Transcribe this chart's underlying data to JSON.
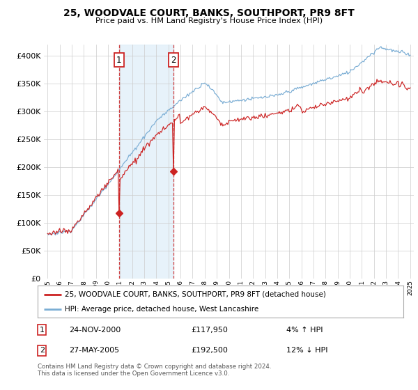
{
  "title": "25, WOODVALE COURT, BANKS, SOUTHPORT, PR9 8FT",
  "subtitle": "Price paid vs. HM Land Registry's House Price Index (HPI)",
  "legend_line1": "25, WOODVALE COURT, BANKS, SOUTHPORT, PR9 8FT (detached house)",
  "legend_line2": "HPI: Average price, detached house, West Lancashire",
  "transaction1_date": "24-NOV-2000",
  "transaction1_price": "£117,950",
  "transaction1_hpi": "4% ↑ HPI",
  "transaction2_date": "27-MAY-2005",
  "transaction2_price": "£192,500",
  "transaction2_hpi": "12% ↓ HPI",
  "footer": "Contains HM Land Registry data © Crown copyright and database right 2024.\nThis data is licensed under the Open Government Licence v3.0.",
  "hpi_color": "#7aadd4",
  "price_color": "#cc2222",
  "dashed_color": "#cc2222",
  "bg_color": "#ffffff",
  "grid_color": "#cccccc",
  "highlight_bg": "#d8eaf7",
  "ylim_min": 0,
  "ylim_max": 420000,
  "yticks": [
    0,
    50000,
    100000,
    150000,
    200000,
    250000,
    300000,
    350000,
    400000
  ],
  "year_start": 1995,
  "year_end": 2025,
  "transaction1_year": 2000.9,
  "transaction2_year": 2005.4
}
